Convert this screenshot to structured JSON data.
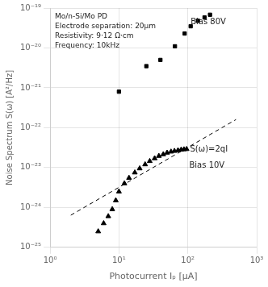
{
  "chart_data": {
    "type": "scatter",
    "xlabel": "Photocurrent Iₚ [μA]",
    "ylabel": "Noise Spectrum S(ω) [A²/Hz]",
    "log": true,
    "grid": true,
    "xlim": [
      1,
      1000
    ],
    "ylim": [
      1e-25,
      1e-19
    ],
    "xticks": [
      {
        "value": 1,
        "label": "10⁰"
      },
      {
        "value": 10,
        "label": "10¹"
      },
      {
        "value": 100,
        "label": "10²"
      },
      {
        "value": 1000,
        "label": "10³"
      }
    ],
    "yticks": [
      {
        "value": 1e-25,
        "label": "10⁻²⁵"
      },
      {
        "value": 1e-24,
        "label": "10⁻²⁴"
      },
      {
        "value": 1e-23,
        "label": "10⁻²³"
      },
      {
        "value": 1e-22,
        "label": "10⁻²²"
      },
      {
        "value": 1e-21,
        "label": "10⁻²¹"
      },
      {
        "value": 1e-20,
        "label": "10⁻²⁰"
      },
      {
        "value": 1e-19,
        "label": "10⁻¹⁹"
      }
    ],
    "series": [
      {
        "type": "scatter",
        "marker": "square",
        "color": "black",
        "x": [
          10,
          25,
          40,
          65,
          90,
          110,
          140,
          175,
          210
        ],
        "values": [
          8e-22,
          3.5e-21,
          5e-21,
          1.1e-20,
          2.3e-20,
          3.5e-20,
          4.8e-20,
          5.8e-20,
          6.8e-20
        ]
      },
      {
        "type": "scatter",
        "marker": "triangle",
        "color": "black",
        "x": [
          5,
          6,
          7,
          8,
          9,
          10,
          12,
          14,
          17,
          20,
          24,
          28,
          33,
          38,
          44,
          50,
          57,
          64,
          72,
          80,
          88,
          96
        ],
        "values": [
          2.5e-25,
          4e-25,
          6e-25,
          9e-25,
          1.5e-24,
          2.5e-24,
          4e-24,
          5.5e-24,
          7.5e-24,
          9.5e-24,
          1.2e-23,
          1.45e-23,
          1.7e-23,
          1.95e-23,
          2.15e-23,
          2.35e-23,
          2.5e-23,
          2.6e-23,
          2.7e-23,
          2.8e-23,
          2.85e-23,
          2.9e-23
        ]
      },
      {
        "type": "line",
        "line_style": "dashed",
        "color": "black",
        "x": [
          2,
          500
        ],
        "values": [
          6.4e-25,
          1.6e-22
        ]
      }
    ],
    "annotations": [
      {
        "text": "Bias 80V",
        "x": 110,
        "y": 4.5e-20
      },
      {
        "text": "Bias 10V",
        "x": 105,
        "y": 1.1e-23
      },
      {
        "text": "S(ω)=2qI",
        "x": 108,
        "y": 2.8e-23
      },
      {
        "text": "Mo/n-Si/Mo PD\nElectrode separation: 20μm\nResistivity: 9·12 Ω·cm\nFrequency: 10kHz"
      }
    ]
  }
}
